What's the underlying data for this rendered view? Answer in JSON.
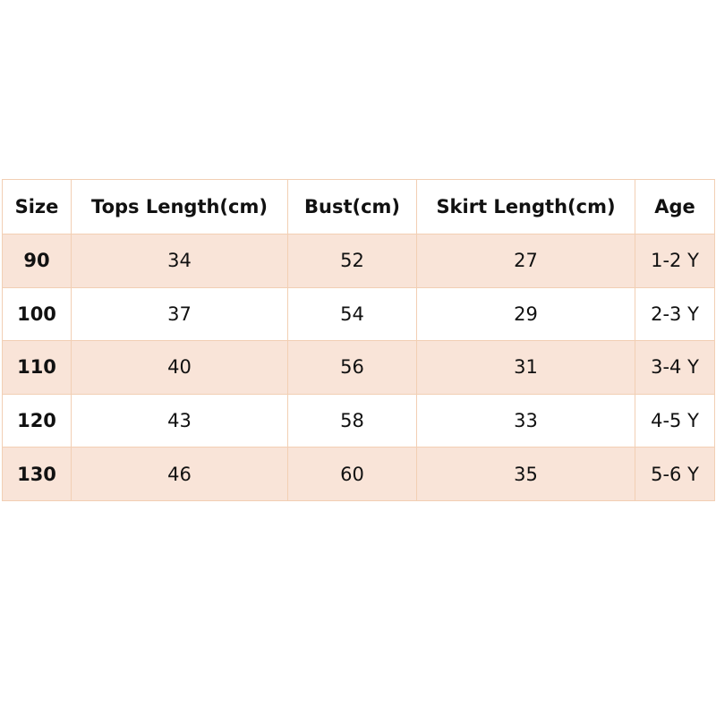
{
  "table": {
    "header": [
      "Size",
      "Tops Length(cm)",
      "Bust(cm)",
      "Skirt Length(cm)",
      "Age"
    ],
    "rows": [
      [
        90,
        34,
        52,
        27,
        "1-2 Y"
      ],
      [
        100,
        37,
        54,
        29,
        "2-3 Y"
      ],
      [
        110,
        40,
        56,
        31,
        "3-4 Y"
      ],
      [
        120,
        43,
        58,
        33,
        "4-5 Y"
      ],
      [
        130,
        46,
        60,
        35,
        "5-6 Y"
      ]
    ]
  }
}
